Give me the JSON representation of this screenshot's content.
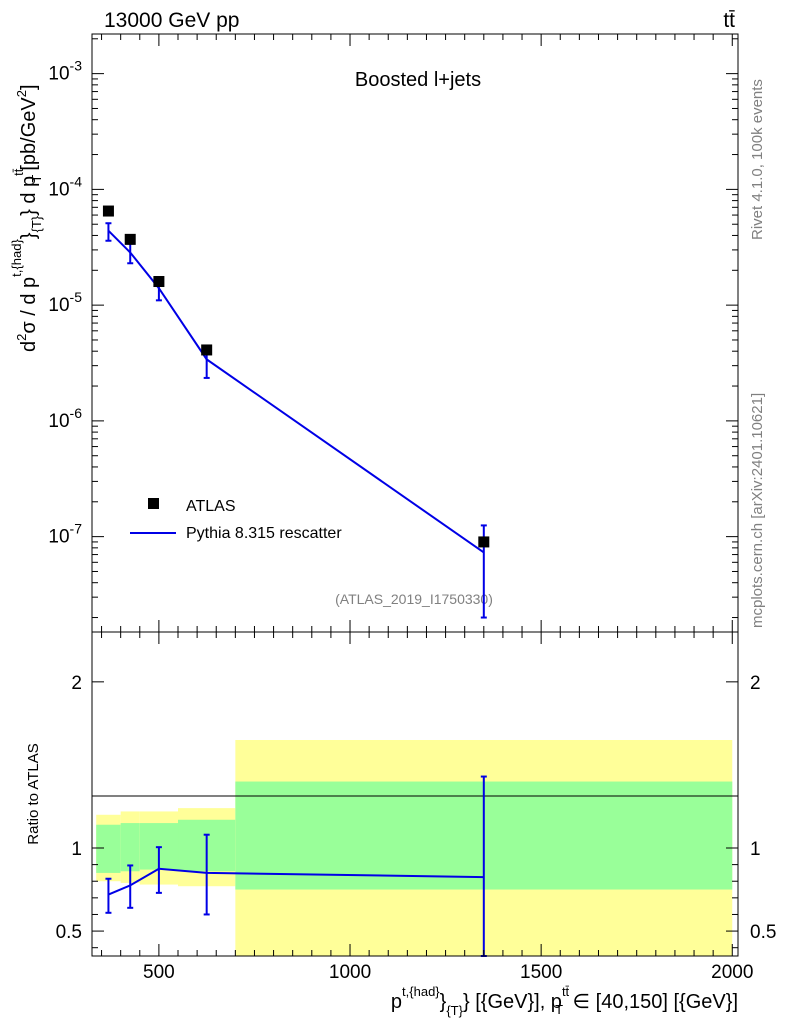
{
  "header": {
    "left_label": "13000 GeV pp",
    "right_label": "tt̄"
  },
  "side_labels": {
    "rivet": "Rivet 4.1.0,  100k events",
    "mcplots": "mcplots.cern.ch [arXiv:2401.10621]"
  },
  "chart_data": [
    {
      "type": "line",
      "panel": "main",
      "title": "Boosted l+jets",
      "watermark": "(ATLAS_2019_I1750330)",
      "yscale": "log",
      "ylim": [
        1.5e-08,
        0.0022
      ],
      "xlim": [
        325,
        2015
      ],
      "ylabel": "d²σ / d p^{t,{had}}_{T} d p_T^{tt̄} [pb/GeV²]",
      "ytick_labels": [
        "10^-3",
        "10^-4",
        "10^-5",
        "10^-6",
        "10^-7"
      ],
      "ytick_values": [
        0.001,
        0.0001,
        1e-05,
        1e-06,
        1e-07
      ],
      "legend": [
        {
          "name": "ATLAS",
          "marker": "square",
          "color": "#000000"
        },
        {
          "name": "Pythia 8.315 rescatter",
          "marker": "line",
          "color": "#0000e6"
        }
      ],
      "series": [
        {
          "name": "ATLAS",
          "x": [
            368,
            425,
            500,
            625,
            1350
          ],
          "y": [
            6.5e-05,
            3.7e-05,
            1.6e-05,
            4.1e-06,
            9e-08
          ]
        },
        {
          "name": "Pythia 8.315 rescatter",
          "x": [
            368,
            425,
            500,
            625,
            1350
          ],
          "y": [
            4.4e-05,
            2.85e-05,
            1.4e-05,
            3.4e-06,
            7.3e-08
          ],
          "err_lo": [
            3.6e-05,
            2.3e-05,
            1.1e-05,
            2.35e-06,
            2e-08
          ],
          "err_hi": [
            5.1e-05,
            3.4e-05,
            1.7e-05,
            4.3e-06,
            1.25e-07
          ]
        }
      ]
    },
    {
      "type": "line",
      "panel": "ratio",
      "ylabel": "Ratio to ATLAS",
      "xlabel": "p^{t,{had}}_{T} [{GeV}], p_T^{tt̄} ∈ [40,150] [{GeV}]",
      "xlim": [
        325,
        2015
      ],
      "ylim": [
        0.35,
        2.3
      ],
      "xtick_labels": [
        "500",
        "1000",
        "1500",
        "2000"
      ],
      "xtick_values": [
        500,
        1000,
        1500,
        2000
      ],
      "ytick_labels": [
        "0.5",
        "1",
        "2"
      ],
      "ytick_values": [
        0.5,
        1,
        2
      ],
      "bands": [
        {
          "x": [
            336,
            400
          ],
          "stat_lo": 0.85,
          "stat_hi": 1.14,
          "tot_lo": 0.8,
          "tot_hi": 1.2
        },
        {
          "x": [
            400,
            450
          ],
          "stat_lo": 0.86,
          "stat_hi": 1.15,
          "tot_lo": 0.79,
          "tot_hi": 1.22
        },
        {
          "x": [
            450,
            550
          ],
          "stat_lo": 0.87,
          "stat_hi": 1.15,
          "tot_lo": 0.78,
          "tot_hi": 1.22
        },
        {
          "x": [
            550,
            700
          ],
          "stat_lo": 0.86,
          "stat_hi": 1.17,
          "tot_lo": 0.77,
          "tot_hi": 1.24
        },
        {
          "x": [
            700,
            2000
          ],
          "stat_lo": 0.75,
          "stat_hi": 1.4,
          "tot_lo": 0.35,
          "tot_hi": 1.65
        }
      ],
      "series": [
        {
          "name": "Pythia 8.315 rescatter",
          "x": [
            368,
            425,
            500,
            625,
            1350
          ],
          "y": [
            0.72,
            0.775,
            0.875,
            0.85,
            0.825
          ],
          "err_lo": [
            0.61,
            0.64,
            0.73,
            0.6,
            0.35
          ],
          "err_hi": [
            0.815,
            0.895,
            1.005,
            1.08,
            1.43
          ]
        }
      ]
    }
  ]
}
